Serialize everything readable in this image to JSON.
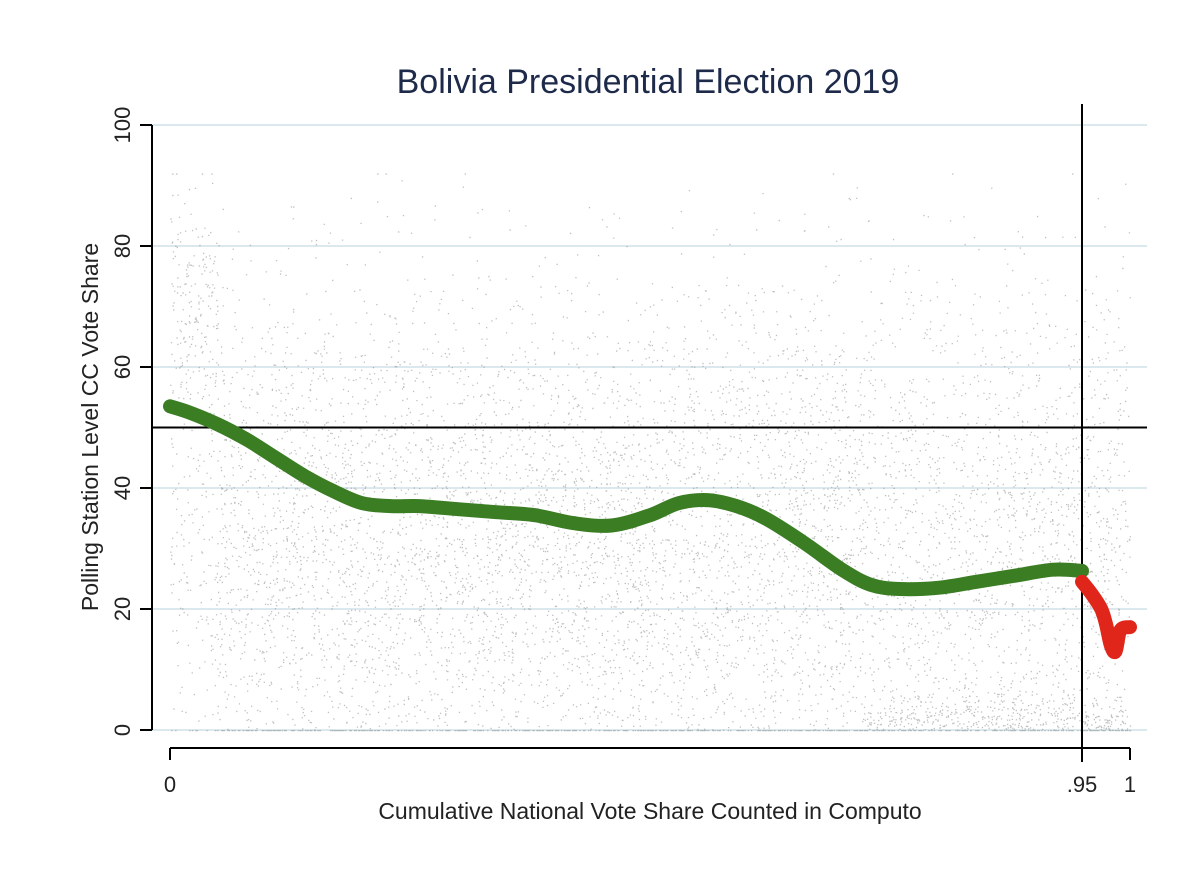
{
  "chart_data": {
    "type": "scatter",
    "title": "Bolivia Presidential Election 2019",
    "xlabel": "Cumulative National Vote Share Counted in Computo",
    "ylabel": "Polling Station Level CC Vote Share",
    "xlim": [
      0,
      1
    ],
    "ylim": [
      0,
      100
    ],
    "x_ticks": [
      {
        "value": 0,
        "label": "0"
      },
      {
        "value": 0.95,
        "label": ".95"
      },
      {
        "value": 1,
        "label": "1"
      }
    ],
    "y_ticks": [
      {
        "value": 0,
        "label": "0"
      },
      {
        "value": 20,
        "label": "20"
      },
      {
        "value": 40,
        "label": "40"
      },
      {
        "value": 60,
        "label": "60"
      },
      {
        "value": 80,
        "label": "80"
      },
      {
        "value": 100,
        "label": "100"
      }
    ],
    "grid": "horizontal",
    "reference_lines": [
      {
        "orientation": "horizontal",
        "value": 50,
        "color": "#000000"
      },
      {
        "orientation": "vertical",
        "value": 0.95,
        "color": "#000000"
      }
    ],
    "colors": {
      "title": "#1e2a4a",
      "points": "#8c8c8c",
      "smooth_before": "#3a7d23",
      "smooth_after": "#e0261b",
      "grid": "#dbe8ee"
    },
    "series": [
      {
        "type": "smoothed-line",
        "color": "#3a7d23",
        "points": [
          [
            0.0,
            53.5
          ],
          [
            0.02,
            52.5
          ],
          [
            0.05,
            50.5
          ],
          [
            0.08,
            48
          ],
          [
            0.11,
            45
          ],
          [
            0.14,
            42
          ],
          [
            0.17,
            39.5
          ],
          [
            0.2,
            37.5
          ],
          [
            0.23,
            37
          ],
          [
            0.26,
            37
          ],
          [
            0.3,
            36.5
          ],
          [
            0.34,
            36
          ],
          [
            0.38,
            35.5
          ],
          [
            0.42,
            34.2
          ],
          [
            0.46,
            33.8
          ],
          [
            0.5,
            35.5
          ],
          [
            0.53,
            37.5
          ],
          [
            0.56,
            38
          ],
          [
            0.59,
            37
          ],
          [
            0.62,
            35
          ],
          [
            0.66,
            31
          ],
          [
            0.7,
            26.5
          ],
          [
            0.73,
            24
          ],
          [
            0.76,
            23.3
          ],
          [
            0.8,
            23.5
          ],
          [
            0.84,
            24.5
          ],
          [
            0.88,
            25.5
          ],
          [
            0.92,
            26.5
          ],
          [
            0.95,
            26.3
          ]
        ]
      },
      {
        "type": "smoothed-line",
        "color": "#e0261b",
        "points": [
          [
            0.95,
            24.5
          ],
          [
            0.96,
            22.5
          ],
          [
            0.97,
            20
          ],
          [
            0.975,
            17.5
          ],
          [
            0.98,
            14
          ],
          [
            0.985,
            13
          ],
          [
            0.99,
            16.5
          ],
          [
            1.0,
            17
          ]
        ]
      }
    ]
  }
}
